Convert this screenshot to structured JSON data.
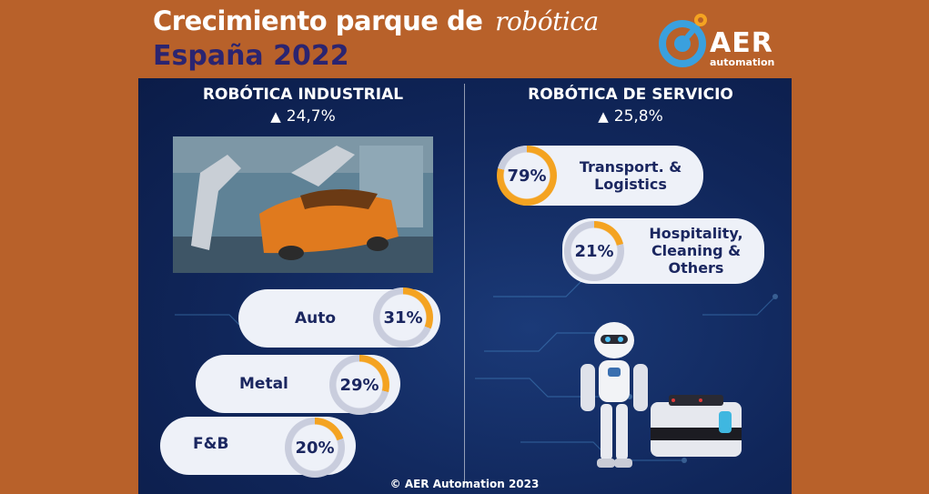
{
  "header": {
    "title_main": "Crecimiento parque de",
    "title_accent": "robótica",
    "subtitle": "España 2022"
  },
  "logo": {
    "text": "AER",
    "sub": "automation",
    "brand_color": "#3aa0de",
    "accent_color": "#f4a321"
  },
  "industrial": {
    "title": "ROBÓTICA INDUSTRIAL",
    "growth_icon": "up-triangle-icon",
    "growth": "24,7%",
    "sectors": [
      {
        "label": "Auto",
        "value": "31%",
        "fraction": 0.31
      },
      {
        "label": "Metal",
        "value": "29%",
        "fraction": 0.29
      },
      {
        "label": "F&B",
        "value": "20%",
        "fraction": 0.2
      }
    ]
  },
  "service": {
    "title": "ROBÓTICA DE SERVICIO",
    "growth_icon": "up-triangle-icon",
    "growth": "25,8%",
    "sectors": [
      {
        "label": "Transport. & Logistics",
        "value": "79%",
        "fraction": 0.79
      },
      {
        "label": "Hospitality, Cleaning & Others",
        "value": "21%",
        "fraction": 0.21
      }
    ]
  },
  "footer": {
    "copyright": "© AER Automation 2023"
  },
  "colors": {
    "background": "#b8612a",
    "panel": "#10265a",
    "ring_track": "#c9cddd",
    "ring_fill": "#f4a321",
    "text_dark": "#1b2760",
    "subtitle": "#2b2470"
  }
}
